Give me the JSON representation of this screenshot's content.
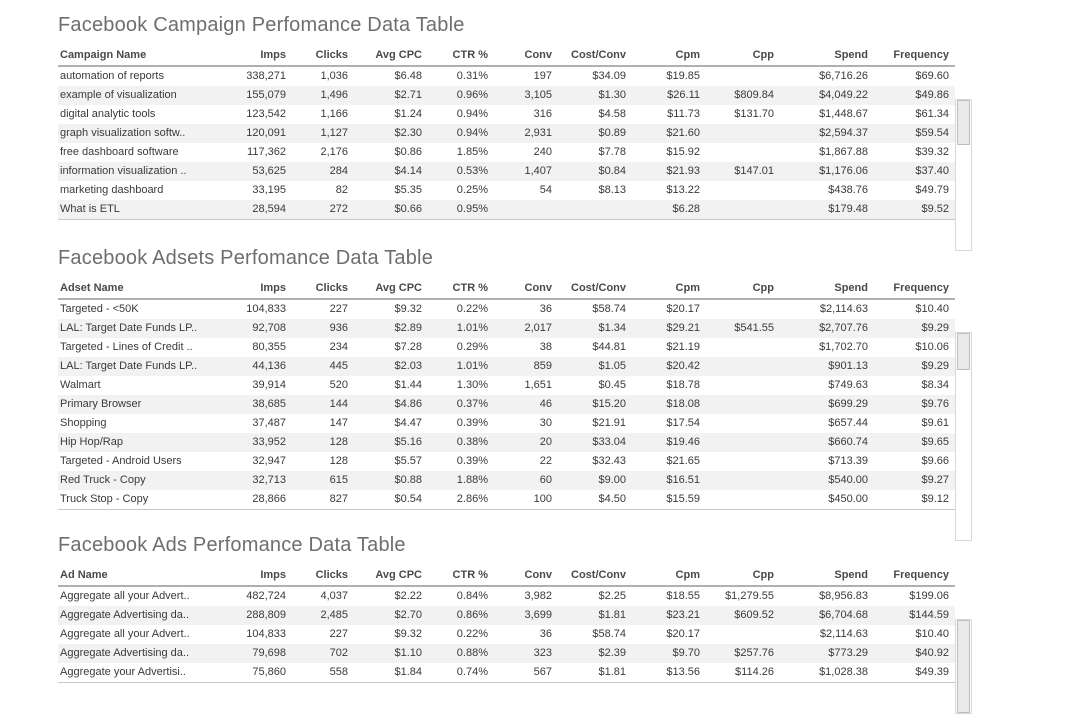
{
  "colors": {
    "background": "#ffffff",
    "title_text": "#6e6e6e",
    "header_text": "#4a4a4a",
    "cell_text": "#3a3a3a",
    "row_band": "#f2f2f2",
    "header_rule": "#b0b0b0",
    "scrollbar_thumb": "#eaeaea",
    "scrollbar_border": "#d8d8d8"
  },
  "chart_data": [
    {
      "type": "table",
      "title": "Facebook Campaign Perfomance Data Table",
      "columns": [
        "Campaign Name",
        "Imps",
        "Clicks",
        "Avg CPC",
        "CTR %",
        "Conv",
        "Cost/Conv",
        "Cpm",
        "Cpp",
        "Spend",
        "Frequency"
      ],
      "rows": [
        [
          "automation of reports",
          "338,271",
          "1,036",
          "$6.48",
          "0.31%",
          "197",
          "$34.09",
          "$19.85",
          "",
          "$6,716.26",
          "$69.60"
        ],
        [
          "example of visualization",
          "155,079",
          "1,496",
          "$2.71",
          "0.96%",
          "3,105",
          "$1.30",
          "$26.11",
          "$809.84",
          "$4,049.22",
          "$49.86"
        ],
        [
          "digital analytic tools",
          "123,542",
          "1,166",
          "$1.24",
          "0.94%",
          "316",
          "$4.58",
          "$11.73",
          "$131.70",
          "$1,448.67",
          "$61.34"
        ],
        [
          "graph visualization softw..",
          "120,091",
          "1,127",
          "$2.30",
          "0.94%",
          "2,931",
          "$0.89",
          "$21.60",
          "",
          "$2,594.37",
          "$59.54"
        ],
        [
          "free dashboard software",
          "117,362",
          "2,176",
          "$0.86",
          "1.85%",
          "240",
          "$7.78",
          "$15.92",
          "",
          "$1,867.88",
          "$39.32"
        ],
        [
          "information visualization ..",
          "53,625",
          "284",
          "$4.14",
          "0.53%",
          "1,407",
          "$0.84",
          "$21.93",
          "$147.01",
          "$1,176.06",
          "$37.40"
        ],
        [
          "marketing dashboard",
          "33,195",
          "82",
          "$5.35",
          "0.25%",
          "54",
          "$8.13",
          "$13.22",
          "",
          "$438.76",
          "$49.79"
        ],
        [
          "What is ETL",
          "28,594",
          "272",
          "$0.66",
          "0.95%",
          "",
          "",
          "$6.28",
          "",
          "$179.48",
          "$9.52"
        ]
      ],
      "scrollbar": {
        "thumb_top_pct": 0,
        "thumb_height_pct": 30
      }
    },
    {
      "type": "table",
      "title": "Facebook Adsets Perfomance Data Table",
      "columns": [
        "Adset Name",
        "Imps",
        "Clicks",
        "Avg CPC",
        "CTR %",
        "Conv",
        "Cost/Conv",
        "Cpm",
        "Cpp",
        "Spend",
        "Frequency"
      ],
      "rows": [
        [
          "Targeted - <50K",
          "104,833",
          "227",
          "$9.32",
          "0.22%",
          "36",
          "$58.74",
          "$20.17",
          "",
          "$2,114.63",
          "$10.40"
        ],
        [
          "LAL: Target Date Funds LP..",
          "92,708",
          "936",
          "$2.89",
          "1.01%",
          "2,017",
          "$1.34",
          "$29.21",
          "$541.55",
          "$2,707.76",
          "$9.29"
        ],
        [
          "Targeted - Lines of Credit ..",
          "80,355",
          "234",
          "$7.28",
          "0.29%",
          "38",
          "$44.81",
          "$21.19",
          "",
          "$1,702.70",
          "$10.06"
        ],
        [
          "LAL: Target Date Funds LP..",
          "44,136",
          "445",
          "$2.03",
          "1.01%",
          "859",
          "$1.05",
          "$20.42",
          "",
          "$901.13",
          "$9.29"
        ],
        [
          "Walmart",
          "39,914",
          "520",
          "$1.44",
          "1.30%",
          "1,651",
          "$0.45",
          "$18.78",
          "",
          "$749.63",
          "$8.34"
        ],
        [
          "Primary Browser",
          "38,685",
          "144",
          "$4.86",
          "0.37%",
          "46",
          "$15.20",
          "$18.08",
          "",
          "$699.29",
          "$9.76"
        ],
        [
          "Shopping",
          "37,487",
          "147",
          "$4.47",
          "0.39%",
          "30",
          "$21.91",
          "$17.54",
          "",
          "$657.44",
          "$9.61"
        ],
        [
          "Hip Hop/Rap",
          "33,952",
          "128",
          "$5.16",
          "0.38%",
          "20",
          "$33.04",
          "$19.46",
          "",
          "$660.74",
          "$9.65"
        ],
        [
          "Targeted - Android Users",
          "32,947",
          "128",
          "$5.57",
          "0.39%",
          "22",
          "$32.43",
          "$21.65",
          "",
          "$713.39",
          "$9.66"
        ],
        [
          "Red Truck - Copy",
          "32,713",
          "615",
          "$0.88",
          "1.88%",
          "60",
          "$9.00",
          "$16.51",
          "",
          "$540.00",
          "$9.27"
        ],
        [
          "Truck Stop - Copy",
          "28,866",
          "827",
          "$0.54",
          "2.86%",
          "100",
          "$4.50",
          "$15.59",
          "",
          "$450.00",
          "$9.12"
        ]
      ],
      "scrollbar": {
        "thumb_top_pct": 0,
        "thumb_height_pct": 18
      }
    },
    {
      "type": "table",
      "title": "Facebook Ads Perfomance Data Table",
      "columns": [
        "Ad Name",
        "Imps",
        "Clicks",
        "Avg CPC",
        "CTR %",
        "Conv",
        "Cost/Conv",
        "Cpm",
        "Cpp",
        "Spend",
        "Frequency"
      ],
      "rows": [
        [
          "Aggregate all your Advert..",
          "482,724",
          "4,037",
          "$2.22",
          "0.84%",
          "3,982",
          "$2.25",
          "$18.55",
          "$1,279.55",
          "$8,956.83",
          "$199.06"
        ],
        [
          "Aggregate Advertising da..",
          "288,809",
          "2,485",
          "$2.70",
          "0.86%",
          "3,699",
          "$1.81",
          "$23.21",
          "$609.52",
          "$6,704.68",
          "$144.59"
        ],
        [
          "Aggregate all your Advert..",
          "104,833",
          "227",
          "$9.32",
          "0.22%",
          "36",
          "$58.74",
          "$20.17",
          "",
          "$2,114.63",
          "$10.40"
        ],
        [
          "Aggregate Advertising da..",
          "79,698",
          "702",
          "$1.10",
          "0.88%",
          "323",
          "$2.39",
          "$9.70",
          "$257.76",
          "$773.29",
          "$40.92"
        ],
        [
          "Aggregate your Advertisi..",
          "75,860",
          "558",
          "$1.84",
          "0.74%",
          "567",
          "$1.81",
          "$13.56",
          "$114.26",
          "$1,028.38",
          "$49.39"
        ]
      ],
      "scrollbar": {
        "thumb_top_pct": 0,
        "thumb_height_pct": 100
      }
    }
  ]
}
